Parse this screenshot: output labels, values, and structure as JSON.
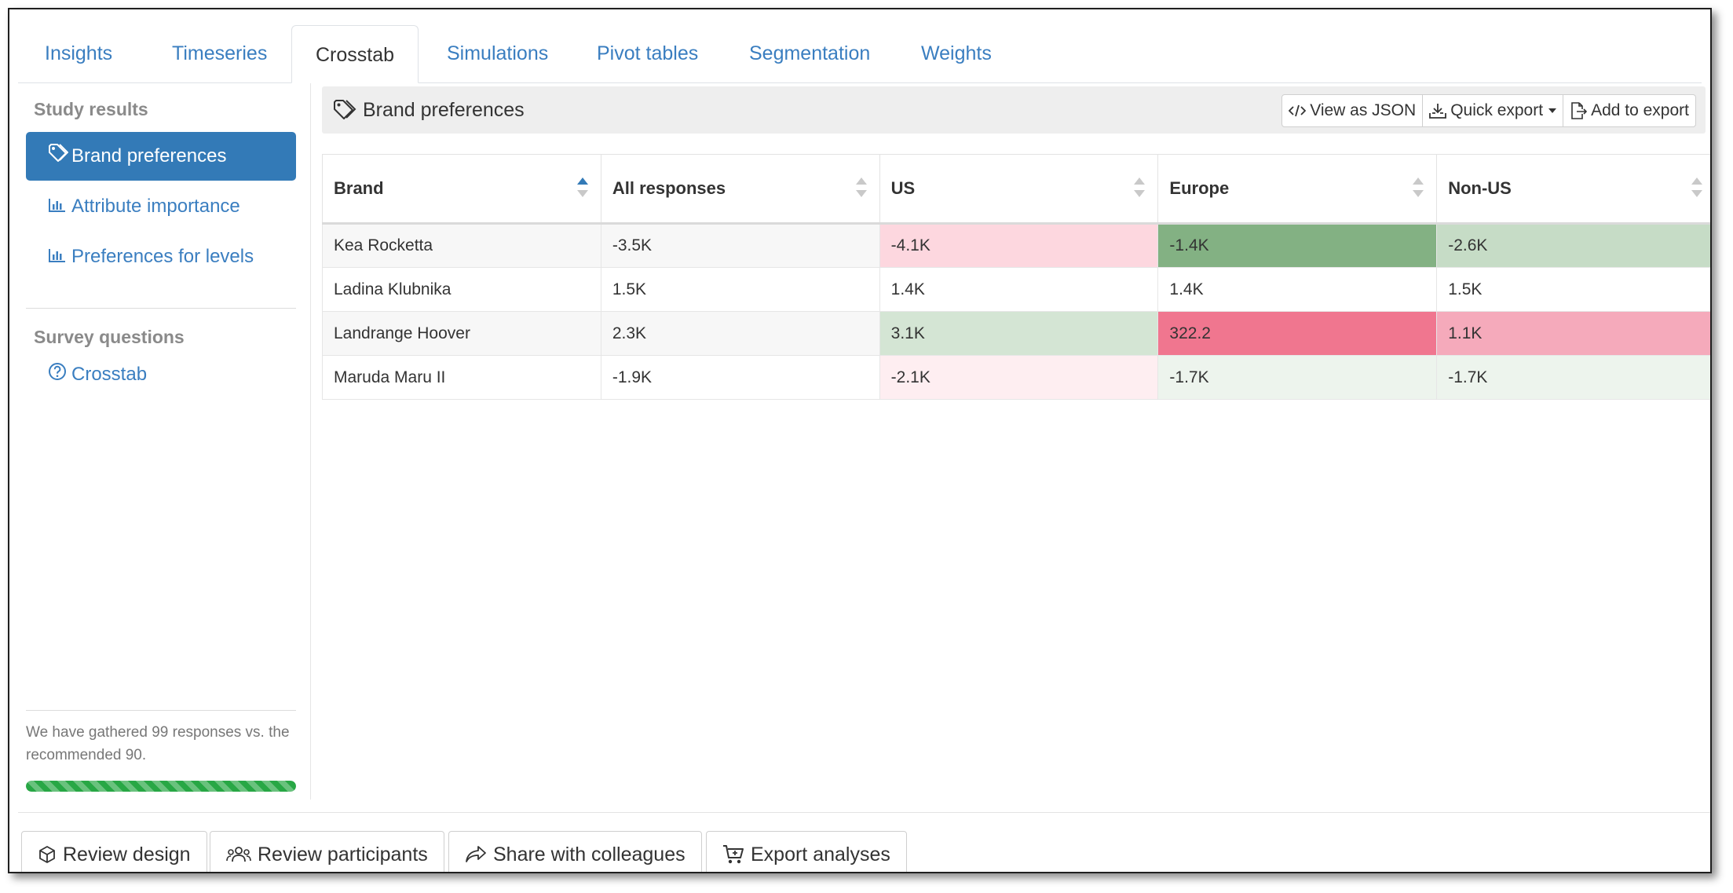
{
  "tabs": [
    {
      "label": "Insights",
      "active": false
    },
    {
      "label": "Timeseries",
      "active": false
    },
    {
      "label": "Crosstab",
      "active": true
    },
    {
      "label": "Simulations",
      "active": false
    },
    {
      "label": "Pivot tables",
      "active": false
    },
    {
      "label": "Segmentation",
      "active": false
    },
    {
      "label": "Weights",
      "active": false
    }
  ],
  "sidebar": {
    "study_heading": "Study results",
    "study_items": [
      {
        "label": "Brand preferences",
        "icon": "tag-icon",
        "active": true
      },
      {
        "label": "Attribute importance",
        "icon": "bar-chart-icon",
        "active": false
      },
      {
        "label": "Preferences for levels",
        "icon": "bar-chart-icon",
        "active": false
      }
    ],
    "survey_heading": "Survey questions",
    "survey_items": [
      {
        "label": "Crosstab",
        "icon": "question-circle-icon"
      }
    ],
    "progress_text": "We have gathered 99 responses vs. the recommended 90.",
    "progress_value": 1.0,
    "progress_color": "#28a745"
  },
  "panel": {
    "title": "Brand preferences",
    "title_icon": "tag-icon",
    "buttons": {
      "view_json": "View as JSON",
      "quick_export": "Quick export",
      "add_to_export": "Add to export"
    }
  },
  "table": {
    "columns": [
      "Brand",
      "All responses",
      "US",
      "Europe",
      "Non-US"
    ],
    "sorted_column": "Brand",
    "sort_direction": "asc",
    "rows": [
      {
        "cells": [
          "Kea Rocketta",
          "-3.5K",
          "-4.1K",
          "-1.4K",
          "-2.6K"
        ],
        "colors": [
          null,
          null,
          "#fdd7df",
          "#83b183",
          "#c6dcc6"
        ]
      },
      {
        "cells": [
          "Ladina Klubnika",
          "1.5K",
          "1.4K",
          "1.4K",
          "1.5K"
        ],
        "colors": [
          null,
          null,
          null,
          null,
          null
        ]
      },
      {
        "cells": [
          "Landrange Hoover",
          "2.3K",
          "3.1K",
          "322.2",
          "1.1K"
        ],
        "colors": [
          null,
          null,
          "#d4e5d4",
          "#f0768f",
          "#f5aabb"
        ]
      },
      {
        "cells": [
          "Maruda Maru II",
          "-1.9K",
          "-2.1K",
          "-1.7K",
          "-1.7K"
        ],
        "colors": [
          null,
          null,
          "#feeef1",
          "#edf4ed",
          "#edf4ed"
        ]
      }
    ]
  },
  "footer": {
    "review_design": "Review design",
    "review_participants": "Review participants",
    "share": "Share with colleagues",
    "export_analyses": "Export analyses"
  },
  "colors": {
    "link": "#3a7ec0",
    "primary": "#337ab7"
  }
}
